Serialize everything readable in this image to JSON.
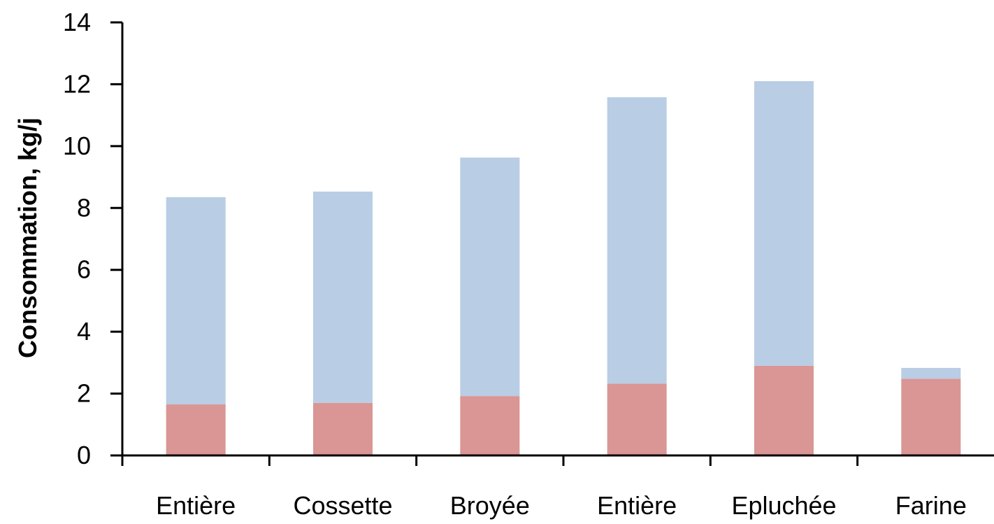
{
  "chart_data": {
    "type": "bar",
    "stacked": true,
    "categories": [
      "Entière",
      "Cossette",
      "Broyée",
      "Entière",
      "Epluchée",
      "Farine"
    ],
    "series": [
      {
        "color": "#d99694",
        "values": [
          1.65,
          1.7,
          1.92,
          2.32,
          2.9,
          2.48
        ]
      },
      {
        "color": "#b9cde5",
        "values": [
          6.7,
          6.83,
          7.71,
          9.26,
          9.2,
          0.35
        ]
      }
    ],
    "ylabel": "Consommation, kg/j",
    "xlabel": "",
    "title": "",
    "ylim": [
      0,
      14
    ],
    "yticks": [
      0,
      2,
      4,
      6,
      8,
      10,
      12,
      14
    ],
    "grid": false,
    "legend": "none"
  }
}
